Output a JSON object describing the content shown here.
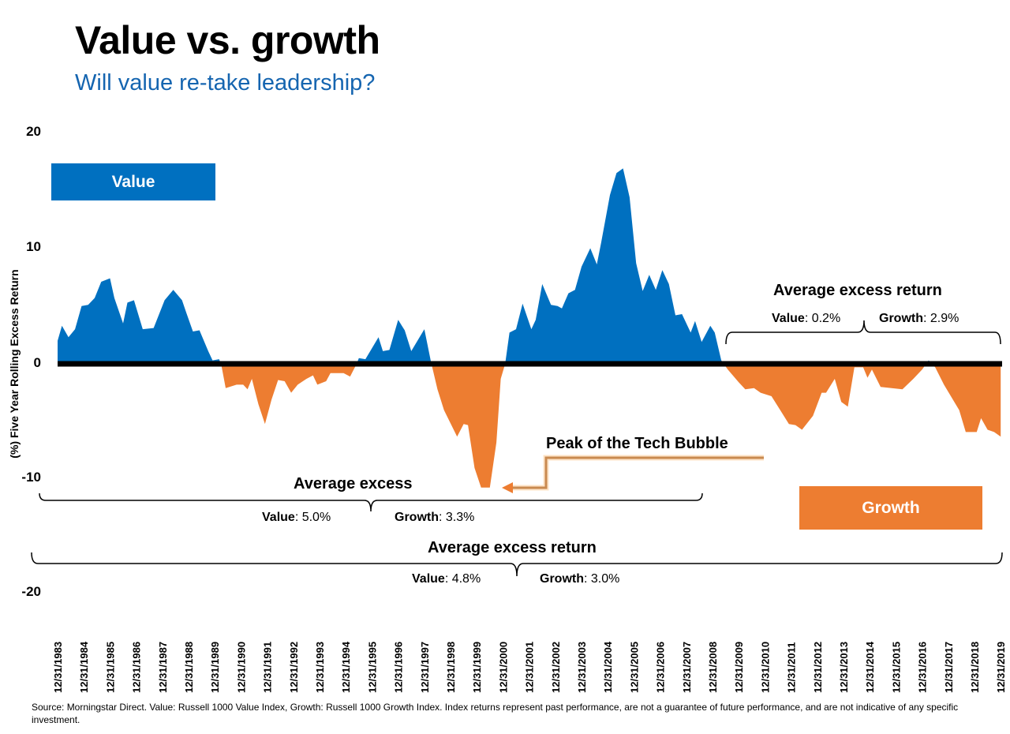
{
  "header": {
    "title": "Value vs. growth",
    "subtitle": "Will value re-take leadership?"
  },
  "legend_boxes": {
    "value": "Value",
    "growth": "Growth"
  },
  "annotations": {
    "tech_bubble": "Peak of the Tech Bubble",
    "period1": {
      "title": "Average excess",
      "value_label": "Value",
      "value": "5.0%",
      "growth_label": "Growth",
      "growth": "3.3%"
    },
    "period2": {
      "title": "Average excess return",
      "value_label": "Value",
      "value": "0.2%",
      "growth_label": "Growth",
      "growth": "2.9%"
    },
    "overall": {
      "title": "Average excess return",
      "value_label": "Value",
      "value": "4.8%",
      "growth_label": "Growth",
      "growth": "3.0%"
    }
  },
  "source": "Source: Morningstar Direct. Value: Russell 1000 Value Index, Growth: Russell 1000 Growth Index. Index returns represent past performance, are not a guarantee of future performance, and are not indicative of any specific investment.",
  "colors": {
    "value": "#0070c0",
    "growth": "#ed7d31",
    "zero_line": "#000000",
    "arrow": "#c98a50"
  },
  "chart_data": {
    "type": "area",
    "title": "",
    "xlabel": "",
    "ylabel": "(%) Five Year Rolling Excess Return",
    "ylim": [
      -20,
      20
    ],
    "yticks": [
      "20",
      "10",
      "0",
      "-10",
      "-20"
    ],
    "xlim": [
      "1983-12",
      "2019-12"
    ],
    "xticks": [
      "12/31/1983",
      "12/31/1984",
      "12/31/1985",
      "12/31/1986",
      "12/31/1987",
      "12/31/1988",
      "12/31/1989",
      "12/31/1990",
      "12/31/1991",
      "12/31/1992",
      "12/31/1993",
      "12/31/1994",
      "12/31/1995",
      "12/31/1996",
      "12/31/1997",
      "12/31/1998",
      "12/31/1999",
      "12/31/2000",
      "12/31/2001",
      "12/31/2002",
      "12/31/2003",
      "12/31/2004",
      "12/31/2005",
      "12/31/2006",
      "12/31/2007",
      "12/31/2008",
      "12/31/2009",
      "12/31/2010",
      "12/31/2011",
      "12/31/2012",
      "12/31/2013",
      "12/31/2014",
      "12/31/2015",
      "12/31/2016",
      "12/31/2017",
      "12/31/2018",
      "12/31/2019"
    ],
    "grid": false,
    "fill_positive": "Value",
    "fill_negative": "Growth",
    "points": [
      [
        "1983-12",
        2.0
      ],
      [
        "1984-02",
        3.3
      ],
      [
        "1984-05",
        2.3
      ],
      [
        "1984-08",
        3.0
      ],
      [
        "1984-11",
        5.0
      ],
      [
        "1985-02",
        5.1
      ],
      [
        "1985-05",
        5.7
      ],
      [
        "1985-08",
        7.1
      ],
      [
        "1985-12",
        7.4
      ],
      [
        "1986-02",
        5.7
      ],
      [
        "1986-06",
        3.5
      ],
      [
        "1986-08",
        5.3
      ],
      [
        "1986-11",
        5.5
      ],
      [
        "1987-03",
        3.0
      ],
      [
        "1987-08",
        3.1
      ],
      [
        "1988-01",
        5.5
      ],
      [
        "1988-05",
        6.4
      ],
      [
        "1988-09",
        5.5
      ],
      [
        "1988-11",
        4.4
      ],
      [
        "1989-02",
        2.8
      ],
      [
        "1989-05",
        2.9
      ],
      [
        "1989-09",
        1.1
      ],
      [
        "1989-11",
        0.3
      ],
      [
        "1990-02",
        0.4
      ],
      [
        "1990-03",
        -0.1
      ],
      [
        "1990-05",
        -2.1
      ],
      [
        "1990-10",
        -1.8
      ],
      [
        "1991-01",
        -1.8
      ],
      [
        "1991-03",
        -2.2
      ],
      [
        "1991-05",
        -1.3
      ],
      [
        "1991-08",
        -3.5
      ],
      [
        "1991-11",
        -5.2
      ],
      [
        "1992-02",
        -3.1
      ],
      [
        "1992-05",
        -1.4
      ],
      [
        "1992-08",
        -1.5
      ],
      [
        "1992-11",
        -2.5
      ],
      [
        "1993-02",
        -1.8
      ],
      [
        "1993-06",
        -1.3
      ],
      [
        "1993-09",
        -1.0
      ],
      [
        "1993-11",
        -1.8
      ],
      [
        "1994-03",
        -1.5
      ],
      [
        "1994-05",
        -0.8
      ],
      [
        "1994-11",
        -0.8
      ],
      [
        "1995-02",
        -1.1
      ],
      [
        "1995-05",
        0.0
      ],
      [
        "1995-06",
        0.5
      ],
      [
        "1995-09",
        0.4
      ],
      [
        "1996-03",
        2.3
      ],
      [
        "1996-05",
        1.1
      ],
      [
        "1996-08",
        1.2
      ],
      [
        "1996-12",
        3.8
      ],
      [
        "1997-03",
        2.9
      ],
      [
        "1997-06",
        1.1
      ],
      [
        "1997-12",
        3.0
      ],
      [
        "1998-03",
        0.2
      ],
      [
        "1998-06",
        -2.2
      ],
      [
        "1998-09",
        -4.0
      ],
      [
        "1999-03",
        -6.3
      ],
      [
        "1999-06",
        -5.2
      ],
      [
        "1999-08",
        -5.3
      ],
      [
        "1999-11",
        -9.0
      ],
      [
        "2000-02",
        -10.7
      ],
      [
        "2000-06",
        -10.7
      ],
      [
        "2000-09",
        -6.8
      ],
      [
        "2000-11",
        -1.3
      ],
      [
        "2001-01",
        0.0
      ],
      [
        "2001-03",
        2.7
      ],
      [
        "2001-06",
        3.0
      ],
      [
        "2001-09",
        5.2
      ],
      [
        "2002-01",
        3.0
      ],
      [
        "2002-03",
        3.8
      ],
      [
        "2002-06",
        6.9
      ],
      [
        "2002-10",
        5.1
      ],
      [
        "2003-01",
        5.0
      ],
      [
        "2003-03",
        4.8
      ],
      [
        "2003-06",
        6.1
      ],
      [
        "2003-09",
        6.4
      ],
      [
        "2003-12",
        8.4
      ],
      [
        "2004-04",
        10.0
      ],
      [
        "2004-07",
        8.6
      ],
      [
        "2004-09",
        10.5
      ],
      [
        "2005-01",
        14.6
      ],
      [
        "2005-04",
        16.5
      ],
      [
        "2005-07",
        16.9
      ],
      [
        "2005-10",
        14.4
      ],
      [
        "2006-01",
        8.7
      ],
      [
        "2006-04",
        6.3
      ],
      [
        "2006-07",
        7.7
      ],
      [
        "2006-10",
        6.4
      ],
      [
        "2007-01",
        8.1
      ],
      [
        "2007-04",
        6.9
      ],
      [
        "2007-07",
        4.2
      ],
      [
        "2007-10",
        4.3
      ],
      [
        "2008-02",
        2.7
      ],
      [
        "2008-04",
        3.7
      ],
      [
        "2008-07",
        1.9
      ],
      [
        "2008-11",
        3.3
      ],
      [
        "2009-01",
        2.7
      ],
      [
        "2009-04",
        0.3
      ],
      [
        "2009-07",
        -0.5
      ],
      [
        "2009-12",
        -1.6
      ],
      [
        "2010-03",
        -2.2
      ],
      [
        "2010-07",
        -2.1
      ],
      [
        "2010-10",
        -2.5
      ],
      [
        "2011-03",
        -2.8
      ],
      [
        "2011-07",
        -4.0
      ],
      [
        "2011-11",
        -5.2
      ],
      [
        "2012-02",
        -5.3
      ],
      [
        "2012-05",
        -5.7
      ],
      [
        "2012-10",
        -4.5
      ],
      [
        "2013-02",
        -2.5
      ],
      [
        "2013-04",
        -2.5
      ],
      [
        "2013-08",
        -1.3
      ],
      [
        "2013-11",
        -3.3
      ],
      [
        "2014-02",
        -3.7
      ],
      [
        "2014-05",
        -0.3
      ],
      [
        "2014-09",
        -0.3
      ],
      [
        "2014-11",
        -1.2
      ],
      [
        "2015-01",
        -0.5
      ],
      [
        "2015-05",
        -2.0
      ],
      [
        "2015-10",
        -2.1
      ],
      [
        "2016-03",
        -2.2
      ],
      [
        "2016-08",
        -1.3
      ],
      [
        "2016-12",
        -0.5
      ],
      [
        "2017-03",
        0.3
      ],
      [
        "2017-06",
        -0.3
      ],
      [
        "2017-10",
        -1.8
      ],
      [
        "2018-05",
        -4.0
      ],
      [
        "2018-08",
        -5.9
      ],
      [
        "2019-01",
        -5.9
      ],
      [
        "2019-03",
        -4.7
      ],
      [
        "2019-06",
        -5.7
      ],
      [
        "2019-09",
        -5.9
      ],
      [
        "2019-12",
        -6.3
      ]
    ]
  }
}
